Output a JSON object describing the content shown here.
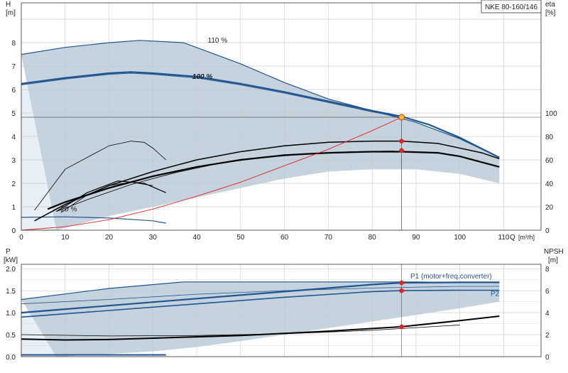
{
  "colors": {
    "envelope_fill": "#c5d3df",
    "envelope_light": "#e8f0f7",
    "pump_curve": "#1f5591",
    "eff_curve": "#000000",
    "system_curve": "#e8221b",
    "grid": "#c8c8c8",
    "op_marker": "#e8221b",
    "op_point": "#f0c419"
  },
  "chart_data": [
    {
      "type": "line",
      "panel": "head-efficiency",
      "title_box": "NKE 80-160/146",
      "xlabel": "Q [m³/h]",
      "xlabel_parts": [
        "Q",
        "[m³/h]"
      ],
      "xlim": [
        0,
        110
      ],
      "x_ticks": [
        0,
        10,
        20,
        30,
        40,
        50,
        60,
        70,
        80,
        90,
        100,
        110
      ],
      "ylabel_left": [
        "H",
        "[m]"
      ],
      "ylim_left": [
        0,
        9
      ],
      "y_ticks_left": [
        0,
        1,
        2,
        3,
        4,
        5,
        6,
        7,
        8
      ],
      "ylabel_right": [
        "eta",
        "[%]"
      ],
      "ylim_right": [
        0,
        180
      ],
      "y_ticks_right": [
        0,
        20,
        40,
        60,
        80,
        100
      ],
      "grid": true,
      "annotations": [
        "110 %",
        "100 %",
        "20 %"
      ],
      "operating_point": {
        "q": 86.7,
        "head": 4.82,
        "eta_values": [
          76,
          68
        ]
      },
      "series": [
        {
          "role": "envelope",
          "x": [
            0,
            10,
            20,
            27,
            37,
            50,
            60,
            70,
            80,
            90,
            100,
            109,
            109,
            100,
            90,
            80,
            70,
            60,
            50,
            40,
            30,
            20,
            12,
            8
          ],
          "y": [
            7.5,
            7.8,
            8.0,
            8.1,
            8.0,
            7.1,
            6.3,
            5.6,
            5.1,
            4.6,
            3.9,
            3.1,
            2.0,
            2.4,
            2.6,
            2.6,
            2.5,
            2.2,
            1.8,
            1.4,
            1.0,
            0.6,
            0.2,
            0.0
          ]
        },
        {
          "role": "curve-110",
          "x": [
            0,
            10,
            20,
            27,
            37,
            50,
            60,
            70,
            80,
            90,
            100,
            109
          ],
          "y": [
            7.5,
            7.8,
            8.0,
            8.1,
            8.0,
            7.1,
            6.3,
            5.6,
            5.1,
            4.6,
            3.9,
            3.1
          ]
        },
        {
          "role": "curve-100",
          "x": [
            0,
            10,
            20,
            25,
            30,
            40,
            50,
            60,
            70,
            80,
            86.7
          ],
          "y": [
            6.2,
            6.45,
            6.65,
            6.7,
            6.65,
            6.5,
            6.2,
            5.85,
            5.45,
            5.05,
            4.82
          ]
        },
        {
          "role": "curve-100-b",
          "x": [
            0,
            10,
            20,
            25,
            30,
            40,
            50,
            60,
            70,
            80,
            86.7,
            93,
            100,
            109
          ],
          "y": [
            6.25,
            6.5,
            6.7,
            6.75,
            6.7,
            6.55,
            6.25,
            5.9,
            5.5,
            5.1,
            4.85,
            4.5,
            3.95,
            3.1
          ]
        },
        {
          "role": "curve-20",
          "x": [
            0,
            10,
            20,
            30,
            33
          ],
          "y": [
            0.55,
            0.57,
            0.52,
            0.4,
            0.3
          ]
        },
        {
          "role": "eta-1",
          "x": [
            3,
            10,
            20,
            30,
            40,
            50,
            60,
            70,
            80,
            86.7,
            95,
            105,
            109
          ],
          "y": [
            0.4,
            1.1,
            1.9,
            2.5,
            3.0,
            3.35,
            3.6,
            3.75,
            3.8,
            3.8,
            3.7,
            3.3,
            3.05
          ]
        },
        {
          "role": "eta-2",
          "x": [
            6,
            10,
            20,
            30,
            40,
            50,
            60,
            70,
            80,
            86.7,
            95,
            100,
            109
          ],
          "y": [
            0.9,
            1.2,
            1.8,
            2.3,
            2.7,
            3.0,
            3.2,
            3.3,
            3.35,
            3.35,
            3.3,
            3.15,
            2.7
          ]
        },
        {
          "role": "eta-3",
          "x": [
            8,
            15,
            25,
            35,
            45,
            55,
            65,
            75,
            85
          ],
          "y": [
            0.8,
            1.3,
            1.95,
            2.45,
            2.85,
            3.1,
            3.25,
            3.35,
            3.38
          ]
        },
        {
          "role": "eta-small-1",
          "x": [
            3,
            10,
            20,
            25,
            28,
            30,
            33
          ],
          "y": [
            0.85,
            2.6,
            3.6,
            3.8,
            3.75,
            3.5,
            3.0
          ]
        },
        {
          "role": "eta-small-2",
          "x": [
            8,
            15,
            22,
            28,
            33
          ],
          "y": [
            0.8,
            1.6,
            2.1,
            2.0,
            1.6
          ]
        },
        {
          "role": "eta-small-3",
          "x": [
            9,
            15,
            20,
            25,
            30
          ],
          "y": [
            0.75,
            1.5,
            1.9,
            2.05,
            1.9
          ]
        },
        {
          "role": "system",
          "x": [
            0,
            10,
            20,
            30,
            40,
            50,
            60,
            70,
            80,
            86.7
          ],
          "y": [
            0.0,
            0.15,
            0.45,
            0.9,
            1.45,
            2.05,
            2.75,
            3.45,
            4.25,
            4.82
          ]
        }
      ]
    },
    {
      "type": "line",
      "panel": "power-npsh",
      "xlim": [
        0,
        110
      ],
      "ylabel_left": [
        "P",
        "[kW]"
      ],
      "ylim_left": [
        0,
        2.0
      ],
      "y_ticks_left": [
        "0.0",
        "0.5",
        "1.0",
        "1.5",
        "2.0"
      ],
      "ylabel_right": [
        "NPSH",
        "[m]"
      ],
      "ylim_right": [
        0,
        8
      ],
      "y_ticks_right": [
        0,
        2,
        4,
        6,
        8
      ],
      "grid": true,
      "labels": [
        "P1 (motor+freq.converter)",
        "P2"
      ],
      "markers": [
        {
          "q": 86.7,
          "value": 1.68
        },
        {
          "q": 86.7,
          "value": 1.5
        },
        {
          "q": 86.7,
          "value": 0.68
        }
      ],
      "series": [
        {
          "role": "power-envelope",
          "x": [
            0,
            10,
            20,
            30,
            37,
            50,
            70,
            90,
            109,
            109,
            100,
            90,
            80,
            70,
            60,
            50,
            40,
            30,
            20,
            12,
            8
          ],
          "y": [
            1.3,
            1.42,
            1.55,
            1.65,
            1.7,
            1.7,
            1.7,
            1.7,
            1.68,
            1.25,
            1.1,
            0.95,
            0.8,
            0.65,
            0.5,
            0.35,
            0.22,
            0.12,
            0.06,
            0.02,
            0.0
          ]
        },
        {
          "role": "P1",
          "x": [
            0,
            20,
            40,
            60,
            80,
            86.7,
            100,
            109
          ],
          "y": [
            1.0,
            1.16,
            1.32,
            1.48,
            1.64,
            1.68,
            1.69,
            1.69
          ]
        },
        {
          "role": "P2",
          "x": [
            0,
            20,
            40,
            60,
            80,
            86.7,
            100,
            109
          ],
          "y": [
            0.9,
            1.05,
            1.2,
            1.35,
            1.48,
            1.5,
            1.51,
            1.51
          ]
        },
        {
          "role": "P1-110",
          "x": [
            0,
            20,
            37,
            50,
            70,
            90,
            109
          ],
          "y": [
            1.3,
            1.55,
            1.7,
            1.7,
            1.7,
            1.7,
            1.68
          ]
        },
        {
          "role": "P-thin",
          "x": [
            0,
            20,
            40,
            60,
            80,
            100,
            109
          ],
          "y": [
            1.2,
            1.3,
            1.42,
            1.5,
            1.56,
            1.6,
            1.6
          ]
        },
        {
          "role": "npsh-1",
          "x": [
            0,
            10,
            20,
            30,
            40,
            50,
            60,
            70,
            80,
            86.7,
            100,
            109
          ],
          "y": [
            0.4,
            0.38,
            0.39,
            0.42,
            0.45,
            0.48,
            0.53,
            0.58,
            0.64,
            0.68,
            0.82,
            0.92
          ]
        },
        {
          "role": "npsh-2",
          "x": [
            0,
            20,
            40,
            60,
            80,
            100
          ],
          "y": [
            0.5,
            0.47,
            0.48,
            0.52,
            0.6,
            0.72
          ]
        },
        {
          "role": "npsh-20",
          "x": [
            0,
            10,
            20,
            33
          ],
          "y": [
            0.04,
            0.04,
            0.04,
            0.04
          ]
        }
      ]
    }
  ]
}
